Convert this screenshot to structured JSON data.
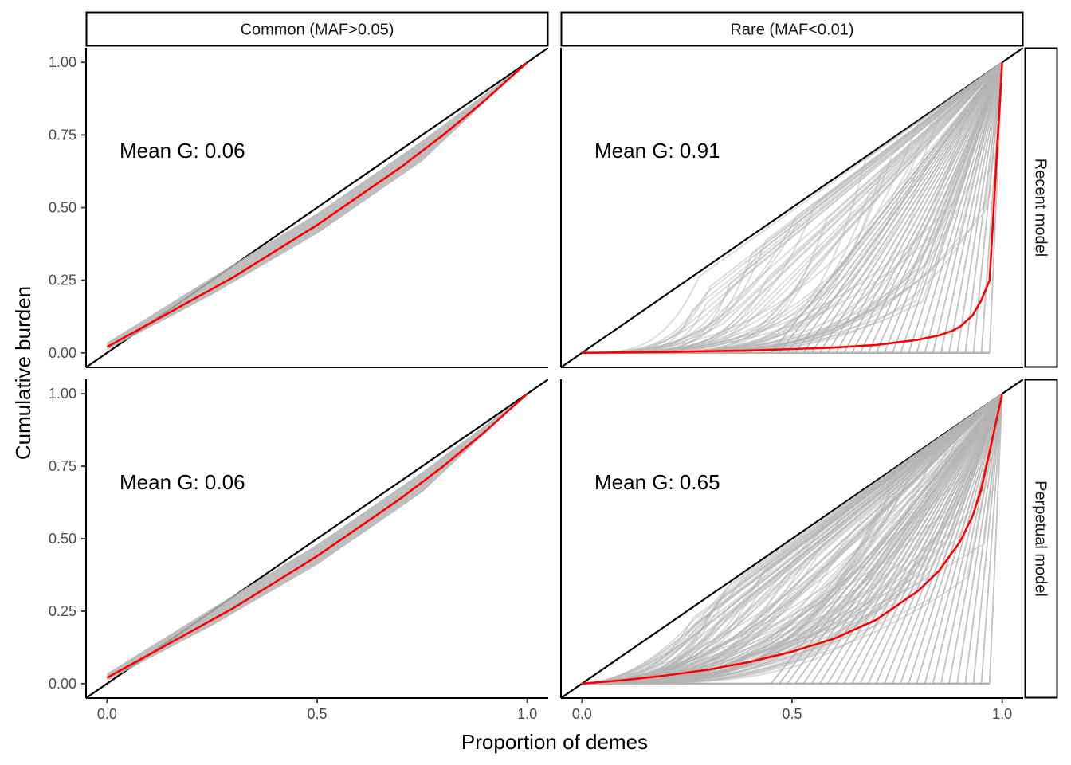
{
  "chart_data": {
    "type": "line",
    "xlabel": "Proportion of demes",
    "ylabel": "Cumulative burden",
    "xlim": [
      -0.05,
      1.05
    ],
    "ylim": [
      -0.05,
      1.05
    ],
    "x_ticks": [
      "0.0",
      "0.5",
      "1.0"
    ],
    "x_tick_values": [
      0,
      0.5,
      1
    ],
    "y_ticks": [
      "0.00",
      "0.25",
      "0.50",
      "0.75",
      "1.00"
    ],
    "y_tick_values": [
      0,
      0.25,
      0.5,
      0.75,
      1
    ],
    "columns": [
      "Common (MAF>0.05)",
      "Rare (MAF<0.01)"
    ],
    "rows": [
      "Recent model",
      "Perpetual model"
    ],
    "colors": {
      "mean_curve": "#ff0000",
      "replicate_curves": "#b3b3b3",
      "equality_line": "#000000"
    },
    "panels": [
      {
        "column": "Common (MAF>0.05)",
        "row": "Recent model",
        "annotation": "Mean G: 0.06",
        "mean_curve": {
          "x": [
            0,
            0.1,
            0.2,
            0.3,
            0.4,
            0.5,
            0.6,
            0.7,
            0.8,
            0.9,
            1.0
          ],
          "y": [
            0.02,
            0.1,
            0.18,
            0.26,
            0.35,
            0.44,
            0.54,
            0.64,
            0.75,
            0.87,
            1.0
          ]
        },
        "replicate_band": {
          "x": [
            0,
            0.25,
            0.5,
            0.75,
            1.0
          ],
          "y_low": [
            0.01,
            0.2,
            0.41,
            0.66,
            1.0
          ],
          "y_high": [
            0.035,
            0.26,
            0.48,
            0.73,
            1.0
          ]
        }
      },
      {
        "column": "Rare (MAF<0.01)",
        "row": "Recent model",
        "annotation": "Mean G: 0.91",
        "mean_curve": {
          "x": [
            0,
            0.2,
            0.4,
            0.6,
            0.7,
            0.8,
            0.85,
            0.88,
            0.9,
            0.93,
            0.95,
            0.97,
            1.0
          ],
          "y": [
            0,
            0.003,
            0.008,
            0.018,
            0.027,
            0.045,
            0.06,
            0.075,
            0.09,
            0.13,
            0.18,
            0.25,
            1.0
          ]
        },
        "replicate_band": {
          "x": [
            0,
            0.25,
            0.5,
            0.75,
            0.97,
            1.0
          ],
          "y_low": [
            0,
            0,
            0,
            0,
            0,
            1.0
          ],
          "y_high": [
            0,
            0.2,
            0.45,
            0.7,
            0.95,
            1.0
          ]
        }
      },
      {
        "column": "Common (MAF>0.05)",
        "row": "Perpetual model",
        "annotation": "Mean G: 0.06",
        "mean_curve": {
          "x": [
            0,
            0.1,
            0.2,
            0.3,
            0.4,
            0.5,
            0.6,
            0.7,
            0.8,
            0.9,
            1.0
          ],
          "y": [
            0.02,
            0.1,
            0.18,
            0.26,
            0.35,
            0.44,
            0.54,
            0.64,
            0.75,
            0.87,
            1.0
          ]
        },
        "replicate_band": {
          "x": [
            0,
            0.25,
            0.5,
            0.75,
            1.0
          ],
          "y_low": [
            0.01,
            0.2,
            0.41,
            0.66,
            1.0
          ],
          "y_high": [
            0.035,
            0.26,
            0.48,
            0.73,
            1.0
          ]
        }
      },
      {
        "column": "Rare (MAF<0.01)",
        "row": "Perpetual model",
        "annotation": "Mean G: 0.65",
        "mean_curve": {
          "x": [
            0,
            0.1,
            0.2,
            0.3,
            0.4,
            0.5,
            0.6,
            0.7,
            0.8,
            0.85,
            0.9,
            0.93,
            0.95,
            0.97,
            1.0
          ],
          "y": [
            0,
            0.012,
            0.028,
            0.048,
            0.075,
            0.11,
            0.155,
            0.22,
            0.32,
            0.39,
            0.49,
            0.58,
            0.67,
            0.8,
            1.0
          ]
        },
        "replicate_band": {
          "x": [
            0,
            0.25,
            0.5,
            0.75,
            0.97,
            1.0
          ],
          "y_low": [
            0,
            0,
            0,
            0,
            0,
            1.0
          ],
          "y_high": [
            0.01,
            0.25,
            0.5,
            0.75,
            0.97,
            1.0
          ]
        }
      }
    ]
  }
}
